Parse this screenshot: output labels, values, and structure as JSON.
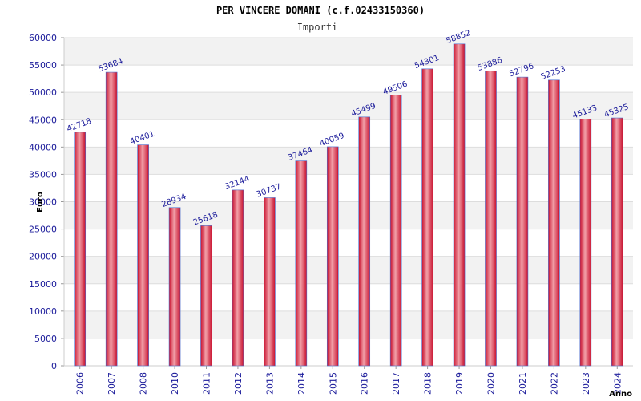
{
  "chart_data": {
    "type": "bar",
    "title": "PER VINCERE DOMANI (c.f.02433150360)",
    "subtitle": "Importi",
    "ylabel": "Euro",
    "xlabel": "Anno",
    "ylim": [
      0,
      60000
    ],
    "yticks": [
      0,
      5000,
      10000,
      15000,
      20000,
      25000,
      30000,
      35000,
      40000,
      45000,
      50000,
      55000,
      60000
    ],
    "categories": [
      "2006",
      "2007",
      "2008",
      "2010",
      "2011",
      "2012",
      "2013",
      "2014",
      "2015",
      "2016",
      "2017",
      "2018",
      "2019",
      "2020",
      "2021",
      "2022",
      "2023",
      "2024"
    ],
    "values": [
      42718,
      53684,
      40401,
      28934,
      25618,
      32144,
      30737,
      37464,
      40059,
      45499,
      49506,
      54301,
      58852,
      53886,
      52796,
      52253,
      45133,
      45325
    ],
    "grid": true,
    "colors": {
      "bar_edge": "#c8102e",
      "bar_center": "#f2a0a8",
      "bar_outline": "#4a6fd0",
      "band": "#f2f2f2",
      "text": "#1a1a9a"
    }
  }
}
